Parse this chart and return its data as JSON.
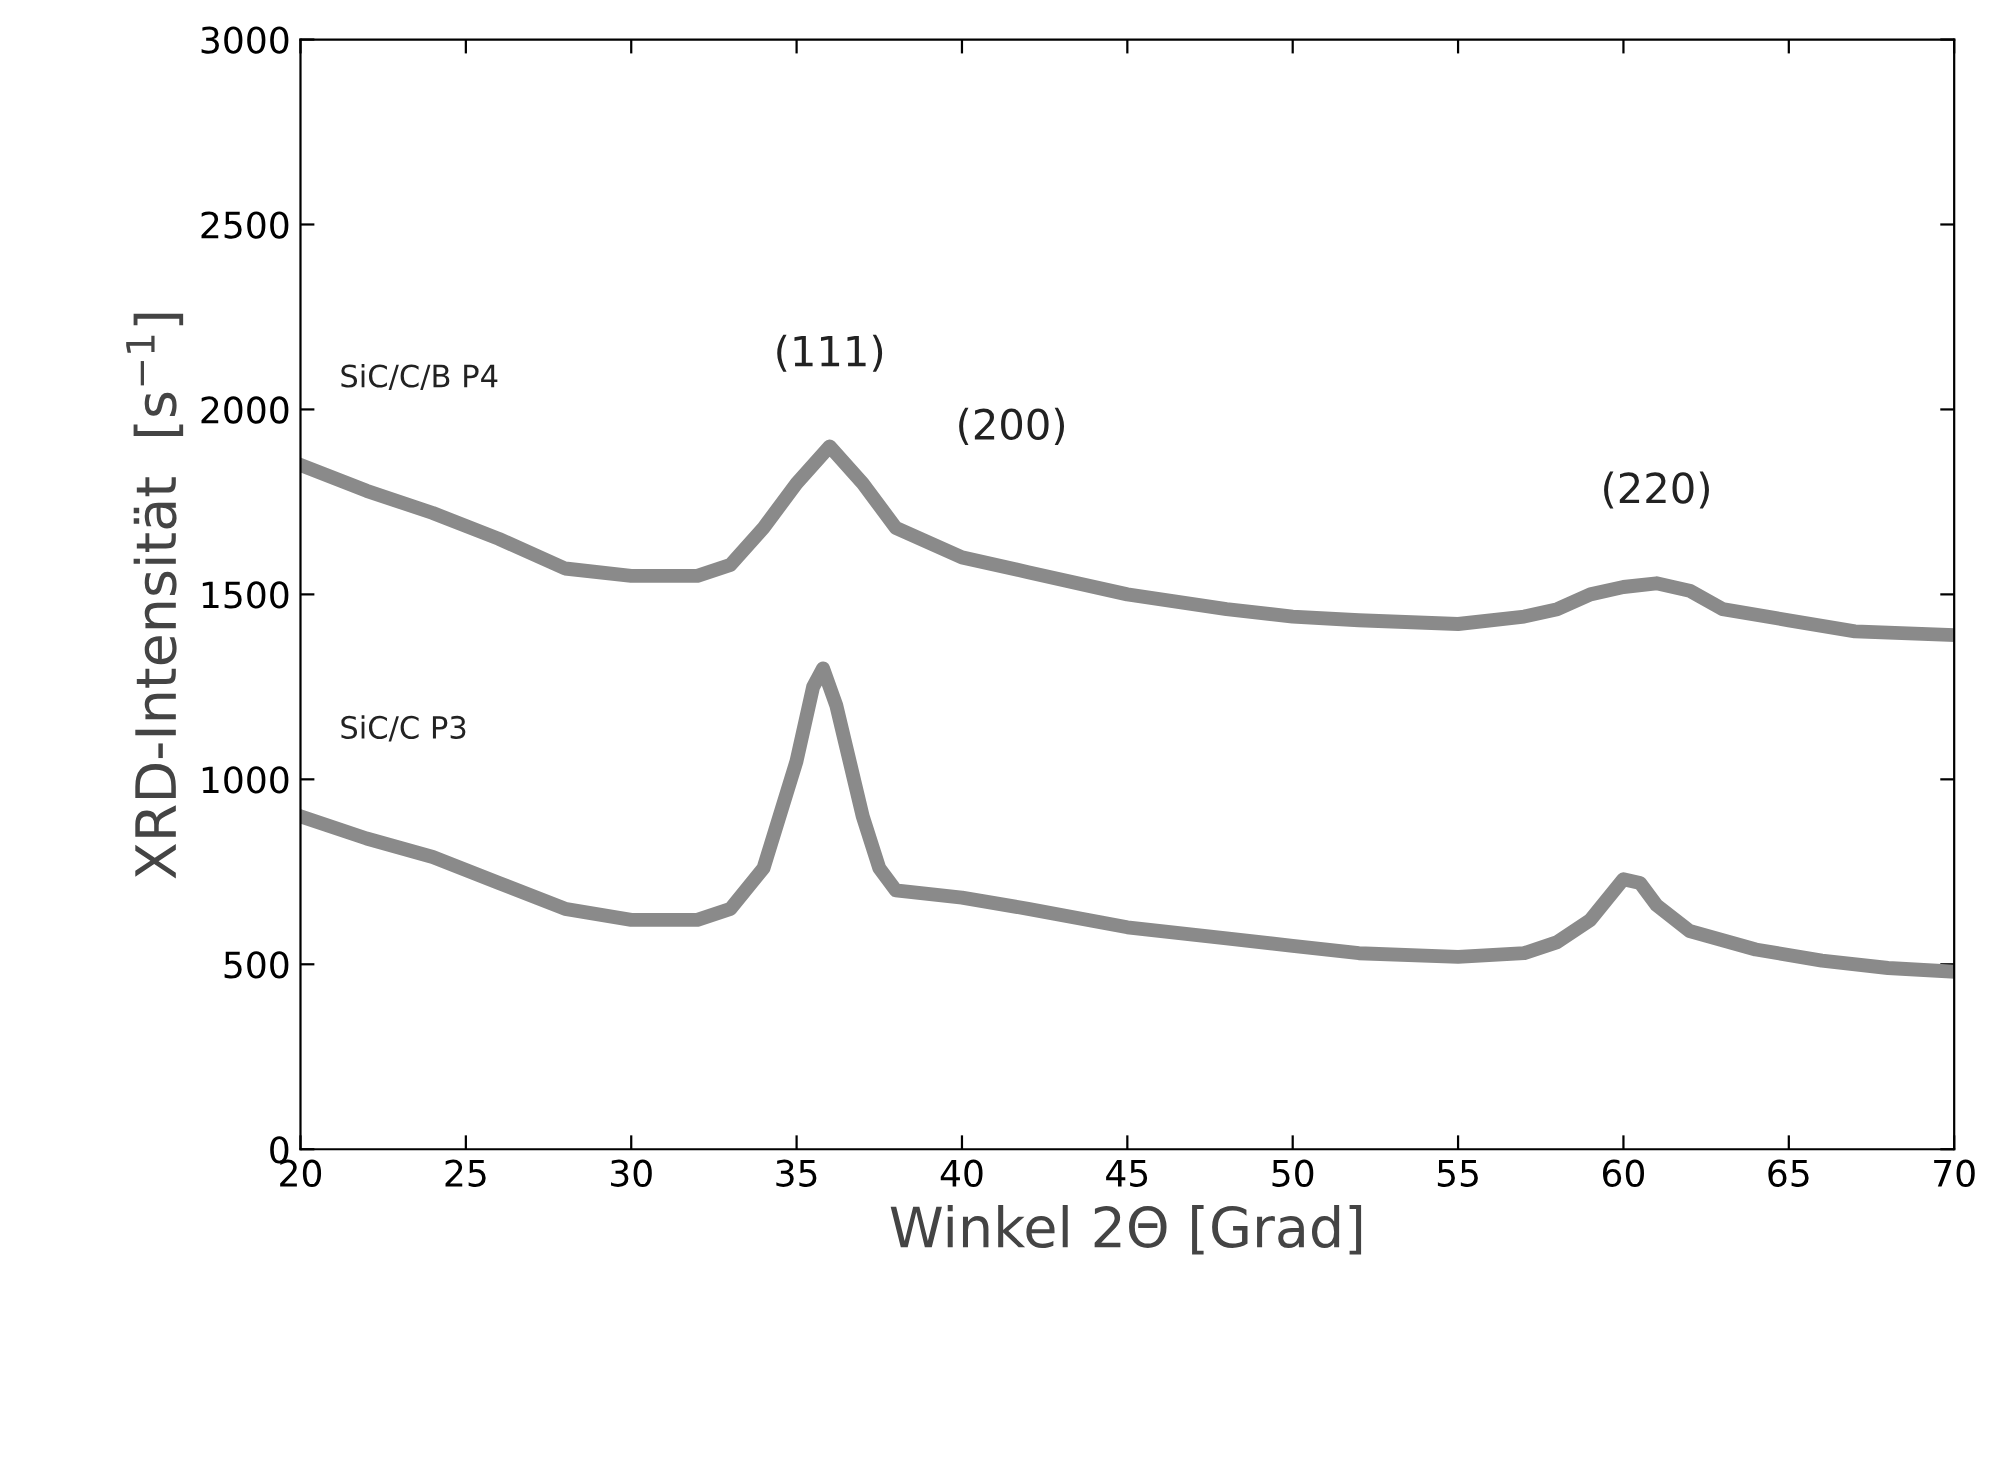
{
  "chart_data": {
    "type": "line",
    "xlabel": "Winkel 2Θ [Grad]",
    "ylabel": "XRD-Intensität  [s$^{−1}$]",
    "xlim": [
      20,
      70
    ],
    "xticks": [
      20,
      25,
      30,
      35,
      40,
      45,
      50,
      55,
      60,
      65,
      70
    ],
    "ylim": [
      0,
      3000
    ],
    "yticks": [
      0,
      500,
      1000,
      1500,
      2000,
      2500,
      3000
    ],
    "grid": false,
    "legend": false,
    "marker": "none",
    "line_style": "solid",
    "series": [
      {
        "name": "SiC/C/B P4",
        "color": "#8a8a8a",
        "x": [
          20,
          22,
          24,
          26,
          28,
          30,
          32,
          33,
          34,
          35,
          36,
          37,
          38,
          40,
          42,
          45,
          48,
          50,
          52,
          55,
          57,
          58,
          59,
          60,
          61,
          62,
          63,
          65,
          67,
          70
        ],
        "values": [
          1850,
          1780,
          1720,
          1650,
          1570,
          1550,
          1550,
          1580,
          1680,
          1800,
          1900,
          1800,
          1680,
          1600,
          1560,
          1500,
          1460,
          1440,
          1430,
          1420,
          1440,
          1460,
          1500,
          1520,
          1530,
          1510,
          1460,
          1430,
          1400,
          1390
        ]
      },
      {
        "name": "SiC/C P3",
        "color": "#8a8a8a",
        "x": [
          20,
          22,
          24,
          26,
          28,
          30,
          32,
          33,
          34,
          35,
          35.5,
          35.8,
          36.2,
          37,
          37.5,
          38,
          40,
          42,
          45,
          48,
          50,
          52,
          55,
          57,
          58,
          59,
          60,
          60.5,
          61,
          62,
          64,
          66,
          68,
          70
        ],
        "values": [
          900,
          840,
          790,
          720,
          650,
          620,
          620,
          650,
          760,
          1050,
          1250,
          1300,
          1200,
          900,
          760,
          700,
          680,
          650,
          600,
          570,
          550,
          530,
          520,
          530,
          560,
          620,
          730,
          720,
          660,
          590,
          540,
          510,
          490,
          480
        ]
      }
    ],
    "annotations": [
      {
        "text": "(111)",
        "x": 36,
        "y": 1900
      },
      "(200)",
      {
        "text": "(220)",
        "x": 61,
        "y": 1530
      }
    ]
  }
}
